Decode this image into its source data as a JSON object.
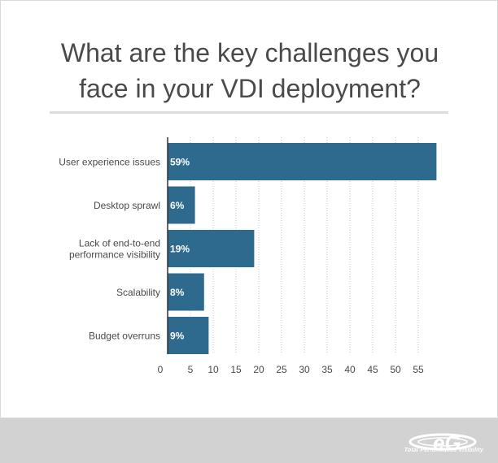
{
  "chart_data": {
    "type": "bar",
    "orientation": "horizontal",
    "title": "What are the key challenges you face in your VDI deployment?",
    "title_lines": [
      "What are the key challenges you",
      "face in your VDI deployment?"
    ],
    "categories": [
      [
        "User experience issues"
      ],
      [
        "Desktop sprawl"
      ],
      [
        "Lack of end-to-end",
        "performance visibility"
      ],
      [
        "Scalability"
      ],
      [
        "Budget overruns"
      ]
    ],
    "values": [
      59,
      6,
      19,
      8,
      9
    ],
    "data_labels": [
      "59%",
      "6%",
      "19%",
      "8%",
      "9%"
    ],
    "xticks": [
      0,
      5,
      10,
      15,
      20,
      25,
      30,
      35,
      40,
      45,
      50,
      55
    ],
    "xlim": [
      0,
      60
    ],
    "grid": "vertical dotted",
    "bar_color": "#2e6a8e",
    "legend": "none"
  },
  "logo": {
    "tagline": "Total Performance Visibility"
  }
}
